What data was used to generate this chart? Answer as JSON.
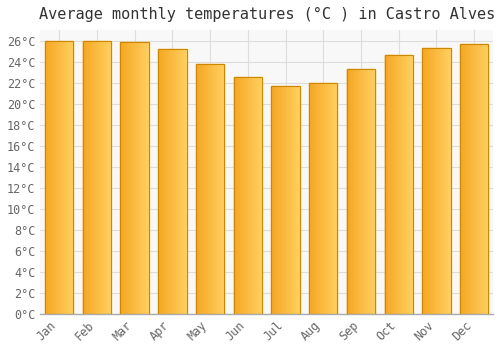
{
  "title": "Average monthly temperatures (°C ) in Castro Alves",
  "months": [
    "Jan",
    "Feb",
    "Mar",
    "Apr",
    "May",
    "Jun",
    "Jul",
    "Aug",
    "Sep",
    "Oct",
    "Nov",
    "Dec"
  ],
  "values": [
    26.0,
    26.0,
    25.9,
    25.2,
    23.8,
    22.5,
    21.7,
    22.0,
    23.3,
    24.6,
    25.3,
    25.7
  ],
  "bar_color_left": "#F5A623",
  "bar_color_right": "#FFD060",
  "bar_edge_color": "#CC8800",
  "ylim": [
    0,
    27
  ],
  "ytick_step": 2,
  "background_color": "#ffffff",
  "plot_bg_color": "#f8f8f8",
  "grid_color": "#dddddd",
  "title_fontsize": 11,
  "tick_fontsize": 8.5,
  "font_family": "monospace"
}
